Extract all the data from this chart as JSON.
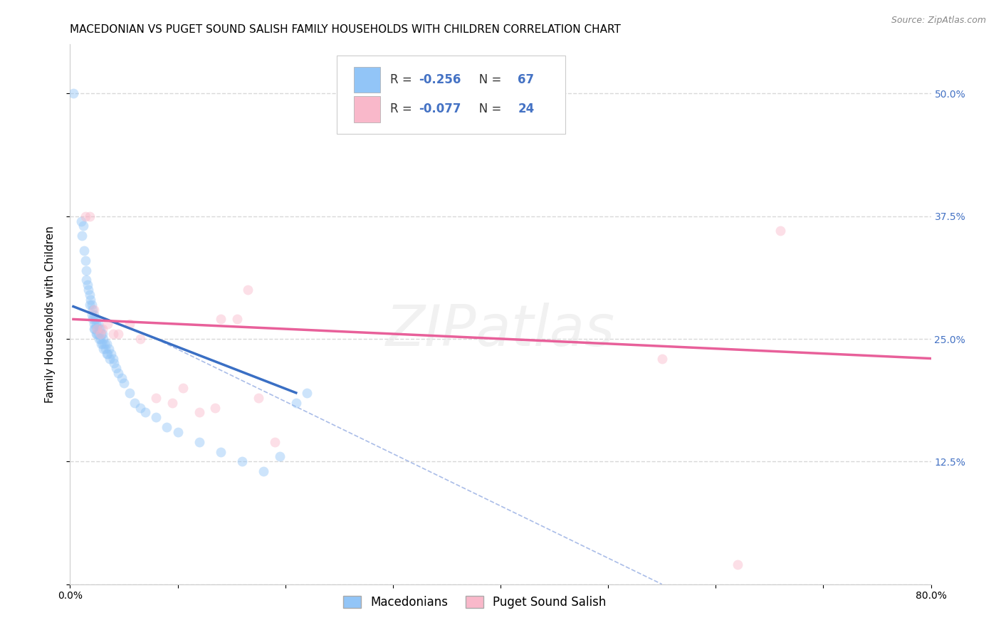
{
  "title": "MACEDONIAN VS PUGET SOUND SALISH FAMILY HOUSEHOLDS WITH CHILDREN CORRELATION CHART",
  "source": "Source: ZipAtlas.com",
  "ylabel": "Family Households with Children",
  "xlim": [
    0.0,
    0.8
  ],
  "ylim": [
    0.0,
    0.55
  ],
  "yticks": [
    0.0,
    0.125,
    0.25,
    0.375,
    0.5
  ],
  "ytick_labels": [
    "",
    "12.5%",
    "25.0%",
    "37.5%",
    "50.0%"
  ],
  "xticks": [
    0.0,
    0.1,
    0.2,
    0.3,
    0.4,
    0.5,
    0.6,
    0.7,
    0.8
  ],
  "xtick_labels": [
    "0.0%",
    "",
    "",
    "",
    "",
    "",
    "",
    "",
    "80.0%"
  ],
  "blue_color": "#92c5f7",
  "pink_color": "#f9b8ca",
  "blue_line_color": "#3a6fc4",
  "pink_line_color": "#e8609a",
  "R_blue": -0.256,
  "N_blue": 67,
  "R_pink": -0.077,
  "N_pink": 24,
  "blue_scatter_x": [
    0.003,
    0.01,
    0.011,
    0.012,
    0.013,
    0.014,
    0.015,
    0.015,
    0.016,
    0.017,
    0.018,
    0.018,
    0.019,
    0.02,
    0.02,
    0.021,
    0.021,
    0.022,
    0.022,
    0.022,
    0.023,
    0.023,
    0.024,
    0.024,
    0.024,
    0.025,
    0.025,
    0.026,
    0.026,
    0.027,
    0.027,
    0.028,
    0.028,
    0.029,
    0.029,
    0.03,
    0.03,
    0.031,
    0.031,
    0.032,
    0.033,
    0.034,
    0.034,
    0.035,
    0.036,
    0.037,
    0.038,
    0.04,
    0.041,
    0.043,
    0.045,
    0.048,
    0.05,
    0.055,
    0.06,
    0.065,
    0.07,
    0.08,
    0.09,
    0.1,
    0.12,
    0.14,
    0.16,
    0.18,
    0.195,
    0.21,
    0.22
  ],
  "blue_scatter_y": [
    0.5,
    0.37,
    0.355,
    0.365,
    0.34,
    0.33,
    0.32,
    0.31,
    0.305,
    0.3,
    0.295,
    0.285,
    0.29,
    0.275,
    0.285,
    0.28,
    0.27,
    0.275,
    0.265,
    0.26,
    0.27,
    0.26,
    0.265,
    0.255,
    0.27,
    0.26,
    0.255,
    0.265,
    0.255,
    0.26,
    0.25,
    0.26,
    0.25,
    0.255,
    0.245,
    0.255,
    0.245,
    0.25,
    0.24,
    0.245,
    0.24,
    0.235,
    0.245,
    0.235,
    0.24,
    0.23,
    0.235,
    0.23,
    0.225,
    0.22,
    0.215,
    0.21,
    0.205,
    0.195,
    0.185,
    0.18,
    0.175,
    0.17,
    0.16,
    0.155,
    0.145,
    0.135,
    0.125,
    0.115,
    0.13,
    0.185,
    0.195
  ],
  "pink_scatter_x": [
    0.014,
    0.018,
    0.022,
    0.025,
    0.028,
    0.03,
    0.035,
    0.04,
    0.045,
    0.055,
    0.065,
    0.08,
    0.095,
    0.105,
    0.12,
    0.135,
    0.14,
    0.155,
    0.165,
    0.175,
    0.19,
    0.55,
    0.62,
    0.66
  ],
  "pink_scatter_y": [
    0.375,
    0.375,
    0.28,
    0.26,
    0.255,
    0.26,
    0.265,
    0.255,
    0.255,
    0.265,
    0.25,
    0.19,
    0.185,
    0.2,
    0.175,
    0.18,
    0.27,
    0.27,
    0.3,
    0.19,
    0.145,
    0.23,
    0.02,
    0.36
  ],
  "blue_trend_x": [
    0.003,
    0.21
  ],
  "blue_trend_y": [
    0.283,
    0.195
  ],
  "pink_trend_x": [
    0.003,
    0.8
  ],
  "pink_trend_y": [
    0.27,
    0.23
  ],
  "diag_line_x": [
    0.08,
    0.55
  ],
  "diag_line_y": [
    0.25,
    0.0
  ],
  "watermark": "ZIPatlas",
  "title_fontsize": 11,
  "axis_label_fontsize": 11,
  "tick_fontsize": 10,
  "legend_fontsize": 12,
  "scatter_size": 100,
  "scatter_alpha": 0.45,
  "right_tick_color": "#4472c4",
  "grid_color": "#d8d8d8",
  "grid_style": "--"
}
